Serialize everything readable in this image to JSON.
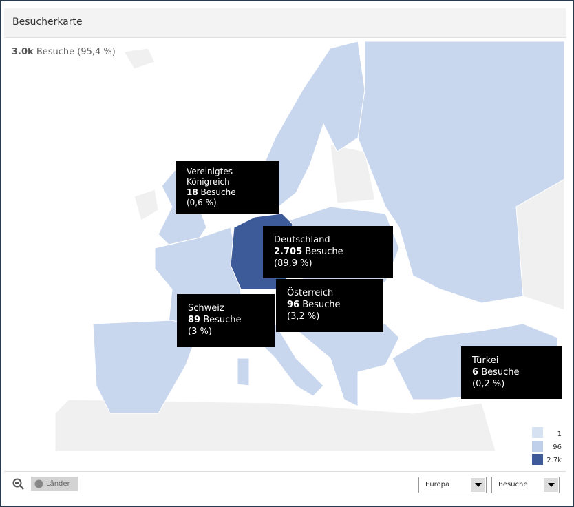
{
  "header": {
    "title": "Besucherkarte"
  },
  "summary": {
    "value": "3.0k",
    "label": "Besuche (95,4 %)"
  },
  "tooltips": [
    {
      "country": "Vereinigtes Königreich",
      "value": "18",
      "unit": "Besuche",
      "share": "(0,6 %)"
    },
    {
      "country": "Deutschland",
      "value": "2.705",
      "unit": "Besuche",
      "share": "(89,9 %)"
    },
    {
      "country": "Österreich",
      "value": "96",
      "unit": "Besuche",
      "share": "(3,2 %)"
    },
    {
      "country": "Schweiz",
      "value": "89",
      "unit": "Besuche",
      "share": "(3 %)"
    },
    {
      "country": "Türkei",
      "value": "6",
      "unit": "Besuche",
      "share": "(0,2 %)"
    }
  ],
  "legend": [
    "1",
    "96",
    "2.7k"
  ],
  "footer": {
    "button": "Länder",
    "region": "Europa",
    "metric": "Besuche"
  }
}
